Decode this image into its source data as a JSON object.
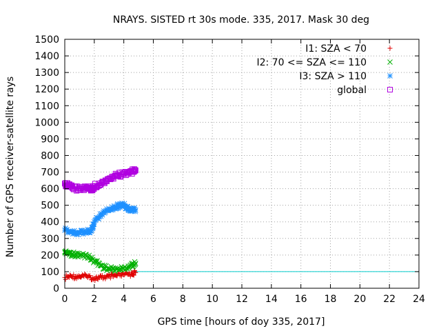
{
  "chart_data": {
    "type": "scatter",
    "title": "NRAYS. SISTED rt 30s mode. 335, 2017. Mask 30 deg",
    "xlabel": "GPS time [hours of doy 335, 2017]",
    "ylabel": "Number of GPS receiver-satellite rays",
    "xlim": [
      0,
      24
    ],
    "ylim": [
      0,
      1500
    ],
    "xticks": [
      "0",
      "2",
      "4",
      "6",
      "8",
      "10",
      "12",
      "14",
      "16",
      "18",
      "20",
      "22",
      "24"
    ],
    "yticks": [
      "0",
      "100",
      "200",
      "300",
      "400",
      "500",
      "600",
      "700",
      "800",
      "900",
      "1000",
      "1100",
      "1200",
      "1300",
      "1400",
      "1500"
    ],
    "grid": true,
    "legend_position": "top-right",
    "threshold_line": {
      "y": 100,
      "color": "#00cccc"
    },
    "series": [
      {
        "name": "I1: SZA < 70",
        "marker": "+",
        "color": "#e00000",
        "x": [
          0.0,
          0.5,
          1.0,
          1.5,
          2.0,
          2.5,
          3.0,
          3.5,
          4.0,
          4.5,
          4.8
        ],
        "y": [
          65,
          72,
          70,
          72,
          60,
          65,
          70,
          75,
          80,
          85,
          95
        ]
      },
      {
        "name": "I2: 70 <= SZA <= 110",
        "marker": "x",
        "color": "#00b000",
        "x": [
          0.0,
          0.2,
          0.5,
          1.0,
          1.5,
          2.0,
          2.5,
          3.0,
          3.5,
          4.0,
          4.5,
          4.8
        ],
        "y": [
          220,
          215,
          205,
          200,
          195,
          165,
          135,
          115,
          115,
          120,
          135,
          150
        ]
      },
      {
        "name": "I3: SZA > 110",
        "marker": "*",
        "color": "#1e90ff",
        "x": [
          0.0,
          0.5,
          1.0,
          1.5,
          1.8,
          2.0,
          2.5,
          3.0,
          3.5,
          3.8,
          4.2,
          4.5,
          4.8
        ],
        "y": [
          350,
          340,
          335,
          340,
          345,
          400,
          450,
          480,
          490,
          505,
          490,
          475,
          470
        ]
      },
      {
        "name": "global",
        "marker": "square",
        "color": "#b000e0",
        "x": [
          0.0,
          0.2,
          0.5,
          1.0,
          1.5,
          1.8,
          2.0,
          2.5,
          3.0,
          3.5,
          4.0,
          4.5,
          4.8
        ],
        "y": [
          630,
          620,
          605,
          600,
          605,
          590,
          615,
          635,
          660,
          680,
          690,
          700,
          710
        ]
      }
    ]
  }
}
